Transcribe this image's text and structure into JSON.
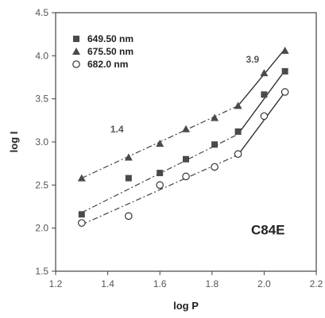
{
  "chart_data": {
    "type": "scatter",
    "xlabel": "log P",
    "ylabel": "log I",
    "xlim": [
      1.2,
      2.2
    ],
    "ylim": [
      1.5,
      4.5
    ],
    "xticks": [
      "1.2",
      "1.4",
      "1.6",
      "1.8",
      "2.0",
      "2.2"
    ],
    "yticks": [
      "1.5",
      "2.0",
      "2.5",
      "3.0",
      "3.5",
      "4.0",
      "4.5"
    ],
    "grid": false,
    "legend_position": "top-left",
    "annotations": [
      {
        "text": "1.4",
        "x": 1.41,
        "y": 3.11
      },
      {
        "text": "3.9",
        "x": 1.93,
        "y": 3.92
      },
      {
        "text": "C84E",
        "x": 1.95,
        "y": 1.93
      }
    ],
    "series": [
      {
        "name": "649.50 nm",
        "marker": "square",
        "points": [
          {
            "x": 1.3,
            "y": 2.16
          },
          {
            "x": 1.48,
            "y": 2.58
          },
          {
            "x": 1.6,
            "y": 2.64
          },
          {
            "x": 1.7,
            "y": 2.8
          },
          {
            "x": 1.81,
            "y": 2.97
          },
          {
            "x": 1.9,
            "y": 3.12
          },
          {
            "x": 2.0,
            "y": 3.55
          },
          {
            "x": 2.08,
            "y": 3.82
          }
        ],
        "fit_low": [
          [
            1.3,
            2.18
          ],
          [
            1.9,
            3.09
          ]
        ],
        "fit_high": [
          [
            1.9,
            3.09
          ],
          [
            2.08,
            3.83
          ]
        ]
      },
      {
        "name": "675.50 nm",
        "marker": "triangle",
        "points": [
          {
            "x": 1.3,
            "y": 2.58
          },
          {
            "x": 1.48,
            "y": 2.82
          },
          {
            "x": 1.6,
            "y": 2.98
          },
          {
            "x": 1.7,
            "y": 3.15
          },
          {
            "x": 1.81,
            "y": 3.28
          },
          {
            "x": 1.9,
            "y": 3.42
          },
          {
            "x": 2.0,
            "y": 3.8
          },
          {
            "x": 2.08,
            "y": 4.06
          }
        ],
        "fit_low": [
          [
            1.3,
            2.58
          ],
          [
            1.9,
            3.42
          ]
        ],
        "fit_high": [
          [
            1.9,
            3.42
          ],
          [
            2.08,
            4.08
          ]
        ]
      },
      {
        "name": "682.0 nm",
        "marker": "circle",
        "points": [
          {
            "x": 1.3,
            "y": 2.06
          },
          {
            "x": 1.48,
            "y": 2.14
          },
          {
            "x": 1.6,
            "y": 2.5
          },
          {
            "x": 1.7,
            "y": 2.6
          },
          {
            "x": 1.81,
            "y": 2.71
          },
          {
            "x": 1.9,
            "y": 2.86
          },
          {
            "x": 2.0,
            "y": 3.3
          },
          {
            "x": 2.08,
            "y": 3.58
          }
        ],
        "fit_low": [
          [
            1.3,
            2.04
          ],
          [
            1.9,
            2.85
          ]
        ],
        "fit_high": [
          [
            1.9,
            2.85
          ],
          [
            2.08,
            3.58
          ]
        ]
      }
    ]
  }
}
